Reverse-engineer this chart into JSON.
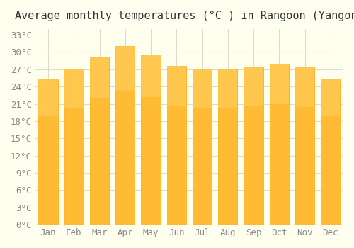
{
  "title": "Average monthly temperatures (°C ) in Rangoon (Yangon)",
  "months": [
    "Jan",
    "Feb",
    "Mar",
    "Apr",
    "May",
    "Jun",
    "Jul",
    "Aug",
    "Sep",
    "Oct",
    "Nov",
    "Dec"
  ],
  "values": [
    25.2,
    27.1,
    29.2,
    31.0,
    29.5,
    27.6,
    27.1,
    27.1,
    27.5,
    28.0,
    27.3,
    25.2
  ],
  "bar_color_main": "#FFBB33",
  "bar_color_edge": "#FFA500",
  "bar_color_gradient_top": "#FFD060",
  "ylim": [
    0,
    34
  ],
  "yticks": [
    0,
    3,
    6,
    9,
    12,
    15,
    18,
    21,
    24,
    27,
    30,
    33
  ],
  "background_color": "#FFFFF0",
  "grid_color": "#DDDDCC",
  "title_fontsize": 11,
  "tick_fontsize": 9
}
